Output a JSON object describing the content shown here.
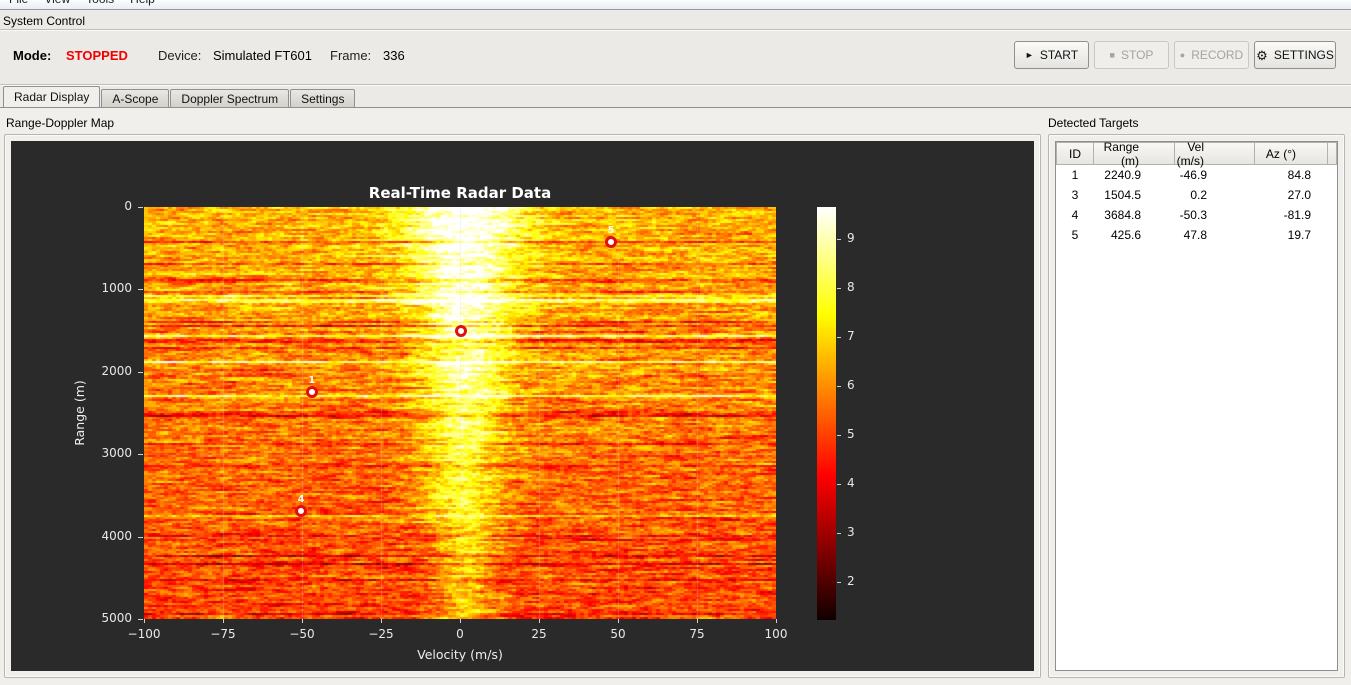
{
  "menubar": {
    "items": [
      "File",
      "View",
      "Tools",
      "Help"
    ]
  },
  "system_control": {
    "title": "System Control",
    "mode_label": "Mode:",
    "mode_value": "STOPPED",
    "device_label": "Device:",
    "device_value": "Simulated FT601",
    "frame_label": "Frame:",
    "frame_value": "336",
    "accent_stopped_color": "#f00000",
    "buttons": [
      {
        "name": "start",
        "label": "START",
        "icon_glyph": "►",
        "icon_name": "play-icon",
        "enabled": true
      },
      {
        "name": "stop",
        "label": "STOP",
        "icon_glyph": "■",
        "icon_name": "stop-icon",
        "enabled": false
      },
      {
        "name": "record",
        "label": "RECORD",
        "icon_glyph": "●",
        "icon_name": "record-icon",
        "enabled": false
      },
      {
        "name": "settings",
        "label": "SETTINGS",
        "icon_glyph": "⚙",
        "icon_name": "gear-icon",
        "enabled": true
      }
    ]
  },
  "tabs": [
    {
      "label": "Radar Display",
      "active": true
    },
    {
      "label": "A-Scope",
      "active": false
    },
    {
      "label": "Doppler Spectrum",
      "active": false
    },
    {
      "label": "Settings",
      "active": false
    }
  ],
  "range_doppler": {
    "title": "Range-Doppler Map"
  },
  "detected_targets": {
    "title": "Detected Targets",
    "columns": [
      "ID",
      "Range (m)",
      "Vel (m/s)",
      "Az (°)"
    ],
    "rows": [
      [
        "1",
        "2240.9",
        "-46.9",
        "84.8"
      ],
      [
        "3",
        "1504.5",
        "0.2",
        "27.0"
      ],
      [
        "4",
        "3684.8",
        "-50.3",
        "-81.9"
      ],
      [
        "5",
        "425.6",
        "47.8",
        "19.7"
      ]
    ]
  },
  "chart_data": {
    "type": "heatmap",
    "title": "Real-Time Radar Data",
    "xlabel": "Velocity (m/s)",
    "ylabel": "Range (m)",
    "xlim": [
      -100,
      100
    ],
    "ylim": [
      5000,
      0
    ],
    "xticks": [
      -100,
      -75,
      -50,
      -25,
      0,
      25,
      50,
      75,
      100
    ],
    "yticks": [
      0,
      1000,
      2000,
      3000,
      4000,
      5000
    ],
    "grid": true,
    "background": "#2a2a2a",
    "colormap": "hot",
    "colorbar": {
      "ticks": [
        2,
        3,
        4,
        5,
        6,
        7,
        8,
        9
      ],
      "top_value": 9.65,
      "bottom_value": 1.22
    },
    "clutter_band": {
      "center_velocity_mps": 1.5,
      "approx_width_mps": 25,
      "note": "bright zero-doppler clutter column, intensity fades with range"
    },
    "noise_intensity": {
      "top_mean": 6.6,
      "bottom_mean": 5.0
    },
    "targets": [
      {
        "id": "1",
        "velocity_mps": -46.9,
        "range_m": 2240.9,
        "azimuth_deg": 84.8
      },
      {
        "id": "3",
        "velocity_mps": 0.2,
        "range_m": 1504.5,
        "azimuth_deg": 27.0
      },
      {
        "id": "4",
        "velocity_mps": -50.3,
        "range_m": 3684.8,
        "azimuth_deg": -81.9
      },
      {
        "id": "5",
        "velocity_mps": 47.8,
        "range_m": 425.6,
        "azimuth_deg": 19.7
      }
    ],
    "marker_color": "#e01010"
  }
}
